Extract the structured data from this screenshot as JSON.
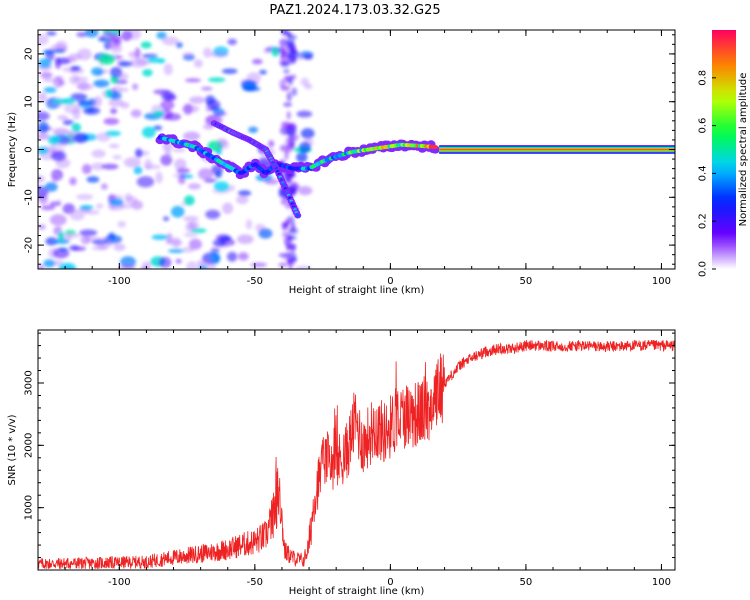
{
  "figure": {
    "title": "PAZ1.2024.173.03.32.G25"
  },
  "chart_data": [
    {
      "type": "heatmap",
      "xlabel": "Height of straight line (km)",
      "ylabel": "Frequency (Hz)",
      "xlim": [
        -130,
        105
      ],
      "ylim": [
        -25,
        25
      ],
      "x_ticks": [
        -100,
        -50,
        0,
        50,
        100
      ],
      "y_ticks": [
        -20,
        -10,
        0,
        10,
        20
      ],
      "colorbar": {
        "label": "Normalized spectral amplitude",
        "range": [
          0,
          1
        ],
        "ticks": [
          0.0,
          0.2,
          0.4,
          0.6,
          0.8
        ],
        "colormap": "gist_rainbow",
        "colors": [
          "#ffffff",
          "#6a00ff",
          "#0020ff",
          "#00d0ff",
          "#00ff40",
          "#c0ff00",
          "#ff8000",
          "#ff0060"
        ]
      },
      "ridge": [
        {
          "x": -85,
          "y": 2.5,
          "amp": 0.35
        },
        {
          "x": -78,
          "y": 1.5,
          "amp": 0.5
        },
        {
          "x": -72,
          "y": 0.5,
          "amp": 0.45
        },
        {
          "x": -66,
          "y": -1.5,
          "amp": 0.4
        },
        {
          "x": -60,
          "y": -3.5,
          "amp": 0.45
        },
        {
          "x": -55,
          "y": -5.0,
          "amp": 0.35
        },
        {
          "x": -50,
          "y": -3.0,
          "amp": 0.3
        },
        {
          "x": -46,
          "y": -5.0,
          "amp": 0.3
        },
        {
          "x": -42,
          "y": -3.0,
          "amp": 0.25
        },
        {
          "x": -36,
          "y": -4.0,
          "amp": 0.3
        },
        {
          "x": -30,
          "y": -4.0,
          "amp": 0.45
        },
        {
          "x": -25,
          "y": -2.5,
          "amp": 0.55
        },
        {
          "x": -20,
          "y": -1.5,
          "amp": 0.5
        },
        {
          "x": -14,
          "y": -0.5,
          "amp": 0.6
        },
        {
          "x": -8,
          "y": 0.0,
          "amp": 0.6
        },
        {
          "x": -2,
          "y": 0.5,
          "amp": 0.7
        },
        {
          "x": 4,
          "y": 1.0,
          "amp": 0.75
        },
        {
          "x": 10,
          "y": 0.8,
          "amp": 0.8
        },
        {
          "x": 17,
          "y": 0.5,
          "amp": 0.85
        }
      ],
      "branch": [
        {
          "x": -65,
          "y": 5.5
        },
        {
          "x": -58,
          "y": 3.5
        },
        {
          "x": -52,
          "y": 2.0
        },
        {
          "x": -46,
          "y": 0.0
        },
        {
          "x": -42,
          "y": -4.0
        },
        {
          "x": -38,
          "y": -9.0
        },
        {
          "x": -34,
          "y": -14.0
        }
      ],
      "constant_line": {
        "x_start": 18,
        "x_end": 105,
        "y": 0,
        "amp": 1.0
      }
    },
    {
      "type": "line",
      "xlabel": "Height of straight line (km)",
      "ylabel": "SNR (10 * v/v)",
      "xlim": [
        -130,
        105
      ],
      "ylim": [
        0,
        3850
      ],
      "x_ticks": [
        -100,
        -50,
        0,
        50,
        100
      ],
      "y_ticks": [
        1000,
        2000,
        3000
      ],
      "color": "#ee2222",
      "series": [
        {
          "x": [
            -130,
            -110,
            -90,
            -80,
            -70,
            -60,
            -55,
            -50,
            -46,
            -43,
            -41,
            -39,
            -36,
            -32,
            -30,
            -28,
            -26,
            -24,
            -20,
            -16,
            -13,
            -10,
            -6,
            -2,
            2,
            6,
            10,
            14,
            18,
            22,
            26,
            30,
            35,
            40,
            45,
            50,
            55,
            60,
            70,
            80,
            90,
            100,
            105
          ],
          "y": [
            100,
            110,
            130,
            200,
            260,
            330,
            400,
            450,
            550,
            900,
            1300,
            300,
            200,
            150,
            400,
            1200,
            1500,
            1800,
            1700,
            1900,
            2400,
            2000,
            2300,
            2200,
            2400,
            2500,
            2500,
            2600,
            2900,
            3100,
            3300,
            3400,
            3500,
            3550,
            3550,
            3600,
            3600,
            3580,
            3600,
            3580,
            3600,
            3600,
            3600
          ]
        }
      ]
    }
  ]
}
